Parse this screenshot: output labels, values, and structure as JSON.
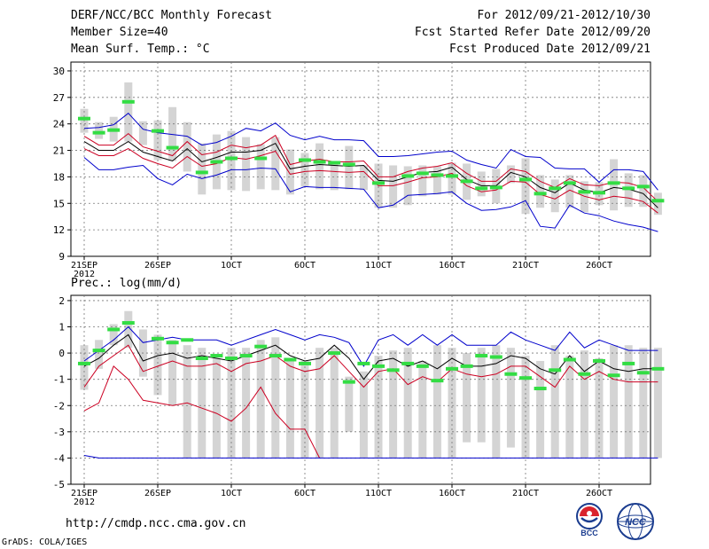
{
  "header": {
    "title": "DERF/NCC/BCC Monthly Forecast",
    "member_size": "Member Size=40",
    "variable": "Mean Surf. Temp.: °C",
    "period": "For 2012/09/21-2012/10/30",
    "started": "Fcst Started Refer Date 2012/09/20",
    "produced": "Fcst Produced Date 2012/09/21"
  },
  "footer": {
    "url": "http://cmdp.ncc.cma.gov.cn",
    "credit": "GrADS: COLA/IGES",
    "logo1_text": "BCC",
    "logo2_text": "NCC"
  },
  "colors": {
    "mean_line": "#000000",
    "upper_line": "#0000cc",
    "red_line": "#cc0022",
    "box": "#d4d4d4",
    "obs": "#33dd44"
  },
  "chart_data": [
    {
      "type": "line",
      "title": "Mean Surf. Temp.: °C",
      "ylim": [
        9,
        31
      ],
      "yticks": [
        "9",
        "12",
        "15",
        "18",
        "21",
        "24",
        "27",
        "30"
      ],
      "xticks": [
        {
          "day": 0,
          "label": "21SEP",
          "sub": "2012"
        },
        {
          "day": 5,
          "label": "26SEP"
        },
        {
          "day": 10,
          "label": "1OCT"
        },
        {
          "day": 15,
          "label": "6OCT"
        },
        {
          "day": 20,
          "label": "11OCT"
        },
        {
          "day": 25,
          "label": "16OCT"
        },
        {
          "day": 30,
          "label": "21OCT"
        },
        {
          "day": 35,
          "label": "26OCT"
        }
      ],
      "grid": true,
      "series": [
        {
          "name": "max",
          "color": "#0000cc",
          "values": [
            23.5,
            23.6,
            23.9,
            25.2,
            23.4,
            23.0,
            22.8,
            22.6,
            21.6,
            21.9,
            22.6,
            23.5,
            23.2,
            24.1,
            22.7,
            22.2,
            22.6,
            22.2,
            22.2,
            22.1,
            20.3,
            20.3,
            20.4,
            20.6,
            20.8,
            20.9,
            19.9,
            19.4,
            19.0,
            21.1,
            20.3,
            20.2,
            19.0,
            18.9,
            18.9,
            17.4,
            18.8,
            18.8,
            18.6,
            16.5
          ]
        },
        {
          "name": "upper",
          "color": "#cc0022",
          "values": [
            22.6,
            21.6,
            21.6,
            22.9,
            21.4,
            20.9,
            20.4,
            22.0,
            20.5,
            20.8,
            21.6,
            21.3,
            21.6,
            22.7,
            19.4,
            19.8,
            20.0,
            19.7,
            19.7,
            19.8,
            18.0,
            18.0,
            18.6,
            19.0,
            19.2,
            19.6,
            18.4,
            17.5,
            17.5,
            18.9,
            18.6,
            17.5,
            16.8,
            17.8,
            17.1,
            17.0,
            17.4,
            17.3,
            16.8,
            15.2
          ]
        },
        {
          "name": "mean",
          "color": "#000000",
          "values": [
            22.0,
            21.0,
            21.0,
            22.0,
            20.8,
            20.3,
            19.8,
            21.2,
            19.7,
            20.2,
            20.8,
            20.8,
            21.0,
            21.8,
            18.9,
            19.2,
            19.4,
            19.3,
            19.2,
            19.3,
            17.6,
            17.5,
            18.0,
            18.5,
            18.6,
            19.1,
            17.7,
            17.0,
            17.0,
            18.5,
            18.0,
            16.8,
            16.2,
            17.3,
            16.5,
            16.2,
            16.8,
            16.6,
            16.1,
            14.5
          ]
        },
        {
          "name": "lower",
          "color": "#cc0022",
          "values": [
            21.2,
            20.4,
            20.4,
            21.2,
            20.1,
            19.5,
            19.0,
            20.3,
            19.2,
            19.5,
            20.2,
            20.0,
            20.4,
            20.9,
            18.3,
            18.6,
            18.7,
            18.6,
            18.5,
            18.6,
            17.0,
            17.0,
            17.4,
            17.9,
            18.0,
            18.4,
            17.0,
            16.3,
            16.5,
            17.5,
            17.4,
            16.0,
            15.5,
            16.5,
            15.8,
            15.4,
            15.8,
            15.6,
            15.2,
            13.9
          ]
        },
        {
          "name": "min",
          "color": "#0000cc",
          "values": [
            20.2,
            18.8,
            18.8,
            19.1,
            19.3,
            17.8,
            17.1,
            18.3,
            17.8,
            18.2,
            18.8,
            18.8,
            19.0,
            18.9,
            16.3,
            16.9,
            16.8,
            16.8,
            16.7,
            16.6,
            14.5,
            14.8,
            15.9,
            16.0,
            16.1,
            16.3,
            15.0,
            14.2,
            14.3,
            14.6,
            15.3,
            12.4,
            12.2,
            14.8,
            13.9,
            13.6,
            13.0,
            12.6,
            12.3,
            11.8
          ]
        }
      ],
      "boxes": [
        [
          23.0,
          25.7
        ],
        [
          22.3,
          24.2
        ],
        [
          22.0,
          24.8
        ],
        [
          22.0,
          28.7
        ],
        [
          21.6,
          24.3
        ],
        [
          19.9,
          24.4
        ],
        [
          19.8,
          25.9
        ],
        [
          18.6,
          24.2
        ],
        [
          16.0,
          21.8
        ],
        [
          16.6,
          22.8
        ],
        [
          16.5,
          23.2
        ],
        [
          16.4,
          22.5
        ],
        [
          16.6,
          21.7
        ],
        [
          16.5,
          22.5
        ],
        [
          16.0,
          21.1
        ],
        [
          16.9,
          20.7
        ],
        [
          16.6,
          21.8
        ],
        [
          16.5,
          19.8
        ],
        [
          16.6,
          21.5
        ],
        [
          16.5,
          19.3
        ],
        [
          14.5,
          19.5
        ],
        [
          14.5,
          19.3
        ],
        [
          14.8,
          19.2
        ],
        [
          15.8,
          19.3
        ],
        [
          16.0,
          19.2
        ],
        [
          16.0,
          19.6
        ],
        [
          15.4,
          19.5
        ],
        [
          15.8,
          18.6
        ],
        [
          15.0,
          18.9
        ],
        [
          17.3,
          19.3
        ],
        [
          13.8,
          20.1
        ],
        [
          14.5,
          18.2
        ],
        [
          14.0,
          17.7
        ],
        [
          14.5,
          18.2
        ],
        [
          14.0,
          17.5
        ],
        [
          14.8,
          17.4
        ],
        [
          14.2,
          20.0
        ],
        [
          14.6,
          18.4
        ],
        [
          14.6,
          18.2
        ],
        [
          13.7,
          16.2
        ]
      ],
      "observed": [
        24.6,
        23.0,
        23.3,
        26.5,
        null,
        23.2,
        21.3,
        null,
        18.5,
        19.7,
        20.1,
        null,
        20.1,
        null,
        null,
        19.9,
        19.7,
        19.6,
        19.4,
        null,
        17.3,
        null,
        18.1,
        18.4,
        18.2,
        18.1,
        17.5,
        16.7,
        16.8,
        null,
        17.7,
        16.1,
        16.7,
        17.3,
        16.3,
        16.2,
        17.3,
        16.7,
        16.9,
        15.3
      ]
    },
    {
      "type": "line",
      "title": "Prec.: log(mm/d)",
      "ylim": [
        -5,
        2.2
      ],
      "yticks": [
        "-5",
        "-4",
        "-3",
        "-2",
        "-1",
        "0",
        "1",
        "2"
      ],
      "xticks": [
        {
          "day": 0,
          "label": "21SEP",
          "sub": "2012"
        },
        {
          "day": 5,
          "label": "26SEP"
        },
        {
          "day": 10,
          "label": "1OCT"
        },
        {
          "day": 15,
          "label": "6OCT"
        },
        {
          "day": 20,
          "label": "11OCT"
        },
        {
          "day": 25,
          "label": "16OCT"
        },
        {
          "day": 30,
          "label": "21OCT"
        },
        {
          "day": 35,
          "label": "26OCT"
        }
      ],
      "grid": true,
      "series": [
        {
          "name": "max",
          "color": "#0000cc",
          "values": [
            -0.3,
            0.1,
            0.5,
            1.0,
            0.4,
            0.5,
            0.6,
            0.5,
            0.5,
            0.5,
            0.3,
            0.5,
            0.7,
            0.9,
            0.7,
            0.5,
            0.7,
            0.6,
            0.4,
            -0.5,
            0.5,
            0.7,
            0.3,
            0.7,
            0.3,
            0.7,
            0.3,
            0.3,
            0.3,
            0.8,
            0.5,
            0.3,
            0.1,
            0.8,
            0.2,
            0.5,
            0.3,
            0.1,
            0.1,
            0.1
          ]
        },
        {
          "name": "upper",
          "color": "#000000",
          "values": [
            -0.5,
            -0.2,
            0.3,
            0.7,
            -0.3,
            -0.1,
            0.0,
            -0.2,
            -0.1,
            -0.2,
            -0.3,
            -0.1,
            0.1,
            0.3,
            -0.1,
            -0.3,
            -0.2,
            0.3,
            -0.2,
            -1.0,
            -0.3,
            -0.2,
            -0.5,
            -0.3,
            -0.6,
            -0.2,
            -0.5,
            -0.5,
            -0.4,
            -0.1,
            -0.2,
            -0.6,
            -0.8,
            -0.1,
            -0.7,
            -0.3,
            -0.6,
            -0.7,
            -0.6,
            -0.6
          ]
        },
        {
          "name": "lower",
          "color": "#cc0022",
          "values": [
            -1.3,
            -0.5,
            -0.1,
            0.3,
            -0.7,
            -0.5,
            -0.3,
            -0.5,
            -0.5,
            -0.4,
            -0.7,
            -0.4,
            -0.3,
            -0.1,
            -0.5,
            -0.7,
            -0.6,
            -0.1,
            -0.7,
            -1.3,
            -0.7,
            -0.6,
            -1.2,
            -0.9,
            -1.1,
            -0.6,
            -0.8,
            -0.9,
            -0.8,
            -0.5,
            -0.5,
            -0.9,
            -1.3,
            -0.5,
            -1.0,
            -0.7,
            -1.0,
            -1.1,
            -1.1,
            -1.1
          ]
        },
        {
          "name": "lowest",
          "color": "#cc0022",
          "values": [
            -2.2,
            -1.9,
            -0.5,
            -1.0,
            -1.8,
            -1.9,
            -2.0,
            -1.9,
            -2.1,
            -2.3,
            -2.6,
            -2.1,
            -1.3,
            -2.3,
            -2.9,
            -2.9,
            -4.0
          ]
        },
        {
          "name": "min",
          "color": "#0000cc",
          "values": [
            -3.9,
            -4.0,
            -4.0,
            -4.0,
            -4.0,
            -4.0,
            -4.0,
            -4.0,
            -4.0,
            -4.0,
            -4.0,
            -4.0,
            -4.0,
            -4.0,
            -4.0,
            -4.0,
            -4.0,
            -4.0,
            -4.0,
            -4.0,
            -4.0,
            -4.0,
            -4.0,
            -4.0,
            -4.0,
            -4.0,
            -4.0,
            -4.0,
            -4.0,
            -4.0,
            -4.0,
            -4.0,
            -4.0,
            -4.0,
            -4.0,
            -4.0,
            -4.0,
            -4.0,
            -4.0,
            -4.0
          ]
        }
      ],
      "boxes": [
        [
          -1.4,
          0.3
        ],
        [
          -0.6,
          0.5
        ],
        [
          0.3,
          1.1
        ],
        [
          0.2,
          1.6
        ],
        [
          -0.9,
          0.9
        ],
        [
          -1.6,
          0.7
        ],
        [
          -2.0,
          0.5
        ],
        [
          -4.0,
          0.3
        ],
        [
          -4.0,
          0.2
        ],
        [
          -4.0,
          -0.2
        ],
        [
          -4.0,
          0.2
        ],
        [
          -4.0,
          0.2
        ],
        [
          -4.0,
          0.5
        ],
        [
          -4.0,
          0.6
        ],
        [
          -4.0,
          -0.2
        ],
        [
          -4.0,
          -0.3
        ],
        [
          -4.0,
          0.2
        ],
        [
          -4.0,
          0.2
        ],
        [
          -3.0,
          -0.9
        ],
        [
          -4.0,
          -0.7
        ],
        [
          -4.0,
          -0.1
        ],
        [
          -4.0,
          0.1
        ],
        [
          -4.0,
          0.2
        ],
        [
          -4.0,
          -0.3
        ],
        [
          -4.0,
          0.3
        ],
        [
          -4.0,
          0.2
        ],
        [
          -3.4,
          0.0
        ],
        [
          -3.4,
          0.2
        ],
        [
          -4.0,
          0.3
        ],
        [
          -3.6,
          0.2
        ],
        [
          -4.0,
          -0.1
        ],
        [
          -4.0,
          -0.3
        ],
        [
          -4.0,
          0.3
        ],
        [
          -4.0,
          -0.1
        ],
        [
          -4.0,
          0.1
        ],
        [
          -4.0,
          -0.2
        ],
        [
          -4.0,
          0.3
        ],
        [
          -4.0,
          0.3
        ],
        [
          -4.0,
          0.2
        ],
        [
          -4.0,
          0.2
        ]
      ],
      "observed": [
        -0.4,
        0.1,
        0.9,
        1.15,
        null,
        0.55,
        0.4,
        0.5,
        -0.2,
        -0.1,
        -0.2,
        -0.1,
        0.25,
        -0.1,
        -0.25,
        -0.4,
        null,
        0.0,
        -1.1,
        -0.4,
        -0.5,
        -0.65,
        -0.4,
        -0.5,
        -1.05,
        -0.6,
        -0.5,
        -0.1,
        -0.15,
        -0.8,
        -0.95,
        -1.35,
        -0.65,
        -0.25,
        -0.8,
        -0.3,
        -0.85,
        -0.4,
        -0.75,
        -0.6
      ]
    }
  ]
}
